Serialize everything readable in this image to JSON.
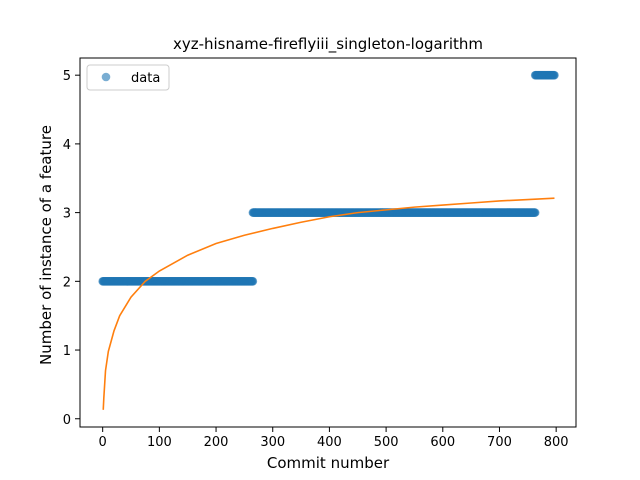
{
  "chart_data": {
    "type": "scatter",
    "title": "xyz-hisname-fireflyiii_singleton-logarithm",
    "xlabel": "Commit number",
    "ylabel": "Number of instance of a feature",
    "xlim": [
      -40,
      835
    ],
    "ylim": [
      -0.12,
      5.25
    ],
    "xticks": [
      0,
      100,
      200,
      300,
      400,
      500,
      600,
      700,
      800
    ],
    "yticks": [
      0,
      1,
      2,
      3,
      4,
      5
    ],
    "legend": {
      "position": "top-left",
      "entries": [
        "data"
      ]
    },
    "grid": false,
    "series": [
      {
        "name": "data",
        "kind": "scatter",
        "color": "#1f77b4",
        "opacity": 0.6,
        "segments": [
          {
            "x_start": 0,
            "x_end": 265,
            "y": 2
          },
          {
            "x_start": 265,
            "x_end": 763,
            "y": 3
          },
          {
            "x_start": 763,
            "x_end": 797,
            "y": 5
          }
        ]
      },
      {
        "kind": "line",
        "color": "#ff7f0e",
        "points": [
          [
            1,
            0.13
          ],
          [
            2,
            0.3
          ],
          [
            5,
            0.7
          ],
          [
            10,
            0.98
          ],
          [
            20,
            1.28
          ],
          [
            30,
            1.5
          ],
          [
            50,
            1.77
          ],
          [
            75,
            2.0
          ],
          [
            100,
            2.15
          ],
          [
            150,
            2.38
          ],
          [
            200,
            2.55
          ],
          [
            250,
            2.67
          ],
          [
            300,
            2.77
          ],
          [
            350,
            2.86
          ],
          [
            400,
            2.94
          ],
          [
            450,
            3.0
          ],
          [
            500,
            3.04
          ],
          [
            550,
            3.08
          ],
          [
            600,
            3.11
          ],
          [
            650,
            3.14
          ],
          [
            700,
            3.17
          ],
          [
            750,
            3.19
          ],
          [
            797,
            3.21
          ]
        ]
      }
    ]
  }
}
